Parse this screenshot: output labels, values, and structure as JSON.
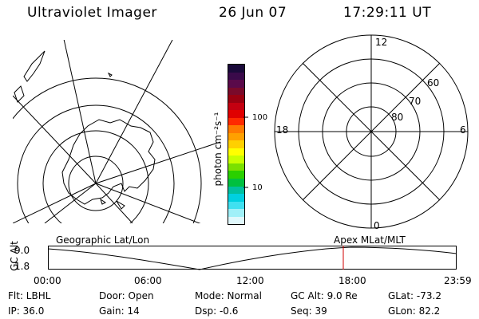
{
  "header": {
    "title": "Ultraviolet Imager",
    "date": "26 Jun 07",
    "time": "17:29:11 UT"
  },
  "geo_panel": {
    "label": "Geographic Lat/Lon"
  },
  "polar_panel": {
    "label": "Apex MLat/MLT",
    "mlt_labels": [
      "12",
      "18",
      "6",
      "0"
    ],
    "mlat_labels": [
      "60",
      "70",
      "80"
    ]
  },
  "colorbar": {
    "unit_label": "photon cm⁻²s⁻¹",
    "tick_labels": [
      "100",
      "10"
    ],
    "colors": [
      "#1a0a3a",
      "#3a0a4a",
      "#5a0a4a",
      "#7a0a2a",
      "#9a0010",
      "#c40010",
      "#e00000",
      "#ff2a00",
      "#ff7a00",
      "#ffa000",
      "#ffd000",
      "#ffff00",
      "#c8ff00",
      "#7ae000",
      "#2ad000",
      "#00c040",
      "#00c0a0",
      "#00d0e0",
      "#40e0f0",
      "#a0f0f8",
      "#e0f8fc"
    ]
  },
  "orbit_plot": {
    "y_axis_label": "GC Alt",
    "y_ticks": [
      "9.0",
      "1.8"
    ],
    "x_ticks": [
      "00:00",
      "06:00",
      "12:00",
      "18:00",
      "23:59"
    ],
    "current_time_marker": "17:29:11",
    "current_marker_color": "#d00000"
  },
  "info": {
    "filter": "Flt: LBHL",
    "door": "Door: Open",
    "mode": "Mode: Normal",
    "gc_alt": "GC Alt: 9.0 Re",
    "glat": "GLat: -73.2",
    "ip": "IP: 36.0",
    "gain": "Gain: 14",
    "dsp": "Dsp:    -0.6",
    "seq": "Seq: 39",
    "glon": "GLon:  82.2"
  }
}
